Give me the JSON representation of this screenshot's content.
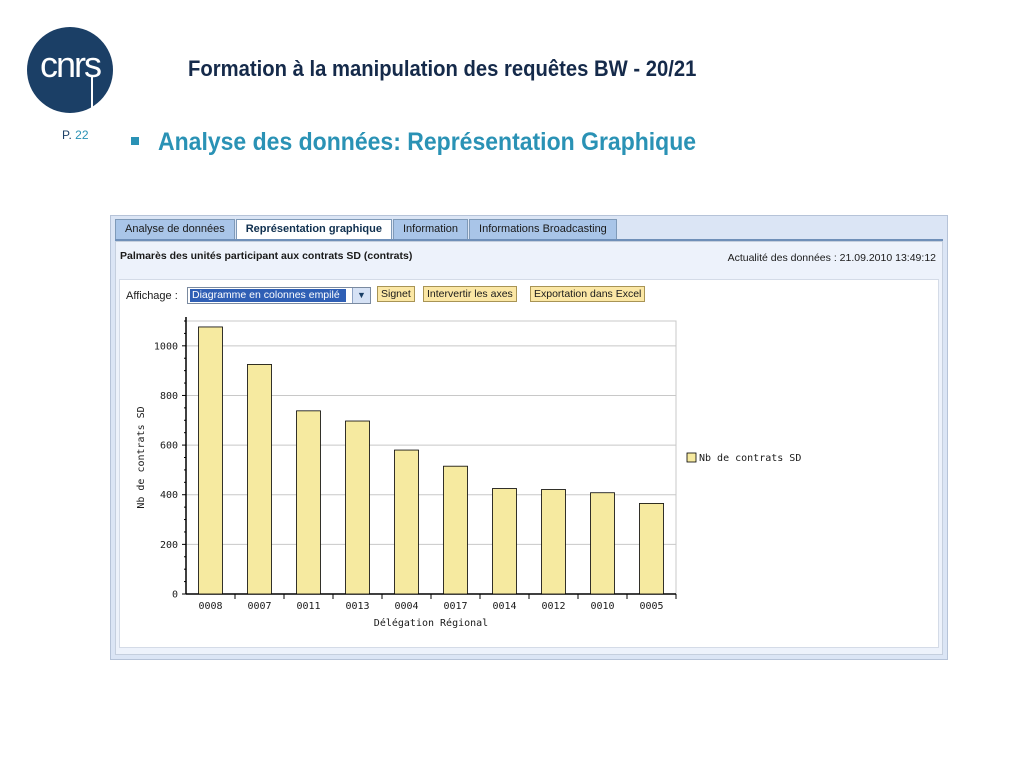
{
  "slide": {
    "logo_text": "cnrs",
    "title": "Formation à la manipulation des requêtes BW - 20/21",
    "page_prefix": "P.",
    "page_number": "22",
    "subtitle": "Analyse des données: Représentation Graphique"
  },
  "tabs": [
    {
      "label": "Analyse de données",
      "active": false
    },
    {
      "label": "Représentation graphique",
      "active": true
    },
    {
      "label": "Information",
      "active": false
    },
    {
      "label": "Informations Broadcasting",
      "active": false
    }
  ],
  "report": {
    "title": "Palmarès des unités participant aux contrats SD (contrats)",
    "actualite": "Actualité des données : 21.09.2010 13:49:12"
  },
  "controls": {
    "affichage_label": "Affichage :",
    "selected_chart_type": "Diagramme en colonnes empilé",
    "signet_label": "Signet",
    "intervertir_label": "Intervertir les axes",
    "export_label": "Exportation dans Excel"
  },
  "chart_data": {
    "type": "bar",
    "categories": [
      "0008",
      "0007",
      "0011",
      "0013",
      "0004",
      "0017",
      "0014",
      "0012",
      "0010",
      "0005"
    ],
    "series": [
      {
        "name": "Nb de contrats SD",
        "values": [
          1076,
          925,
          738,
          697,
          580,
          515,
          425,
          421,
          408,
          365
        ],
        "color": "#f6eaa0"
      }
    ],
    "xlabel": "Délégation Régional",
    "ylabel": "Nb de contrats SD",
    "ylim": [
      0,
      1100
    ],
    "yticks": [
      0,
      200,
      400,
      600,
      800,
      1000
    ],
    "grid": true,
    "legend": "right"
  }
}
